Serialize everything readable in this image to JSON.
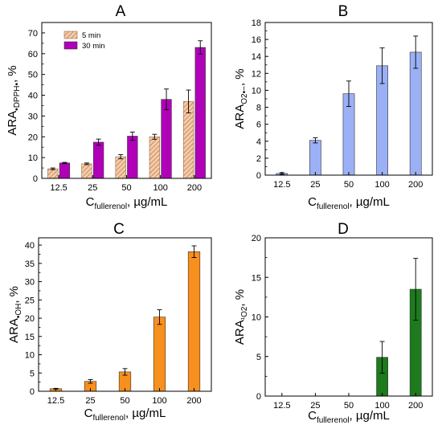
{
  "figure": {
    "x_axis_label": {
      "base": "C",
      "subscript": "fullerenol",
      "suffix": ", µg/mL"
    }
  },
  "chart_data": [
    {
      "panel": "A",
      "type": "bar",
      "categories": [
        "12.5",
        "25",
        "50",
        "100",
        "200"
      ],
      "series": [
        {
          "name": "5 min",
          "values": [
            4.6,
            7.0,
            10.4,
            20.0,
            37.0
          ],
          "errors": [
            0.4,
            0.4,
            1.0,
            1.2,
            5.5
          ],
          "color": "#f6cba8",
          "pattern": "hatch"
        },
        {
          "name": "30 min",
          "values": [
            7.4,
            17.4,
            20.3,
            38.0,
            63.0
          ],
          "errors": [
            0.3,
            1.5,
            2.0,
            5.0,
            3.2
          ],
          "color": "#b000b8",
          "pattern": "solid"
        }
      ],
      "ylim": [
        0,
        75
      ],
      "yticks": [
        0,
        10,
        20,
        30,
        40,
        50,
        60,
        70
      ],
      "ylabel": {
        "base": "ARA",
        "subscript": "•DPPH•",
        "suffix": ", %"
      },
      "legend": "top-left",
      "grid": false
    },
    {
      "panel": "B",
      "type": "bar",
      "categories": [
        "12.5",
        "25",
        "50",
        "100",
        "200"
      ],
      "series": [
        {
          "values": [
            0.2,
            4.1,
            9.6,
            12.9,
            14.5
          ],
          "errors": [
            0.1,
            0.3,
            1.5,
            2.1,
            1.9
          ],
          "color": "#9bb0f5"
        }
      ],
      "ylim": [
        0,
        18
      ],
      "yticks": [
        0,
        2,
        4,
        6,
        8,
        10,
        12,
        14,
        16,
        18
      ],
      "ylabel": {
        "base": "ARA",
        "subscript": "O2•−",
        "suffix": ", %"
      },
      "grid": false
    },
    {
      "panel": "C",
      "type": "bar",
      "categories": [
        "12.5",
        "25",
        "50",
        "100",
        "200"
      ],
      "series": [
        {
          "values": [
            0.7,
            2.7,
            5.3,
            20.3,
            38.2
          ],
          "errors": [
            0.1,
            0.5,
            0.9,
            2.0,
            1.6
          ],
          "color": "#f7901e"
        }
      ],
      "ylim": [
        0,
        42
      ],
      "yticks": [
        0,
        5,
        10,
        15,
        20,
        25,
        30,
        35,
        40
      ],
      "ylabel": {
        "base": "ARA",
        "subscript": "•OH",
        "suffix": ", %"
      },
      "grid": false
    },
    {
      "panel": "D",
      "type": "bar",
      "categories": [
        "12.5",
        "25",
        "50",
        "100",
        "200"
      ],
      "series": [
        {
          "values": [
            0,
            0,
            0,
            4.9,
            13.5
          ],
          "errors": [
            0,
            0,
            0,
            2.0,
            3.9
          ],
          "color": "#1d7a1d"
        }
      ],
      "ylim": [
        0,
        20
      ],
      "yticks": [
        0,
        5,
        10,
        15,
        20
      ],
      "ylabel": {
        "base": "ARA",
        "subscript": "¹O2",
        "suffix": ", %"
      },
      "grid": false
    }
  ]
}
